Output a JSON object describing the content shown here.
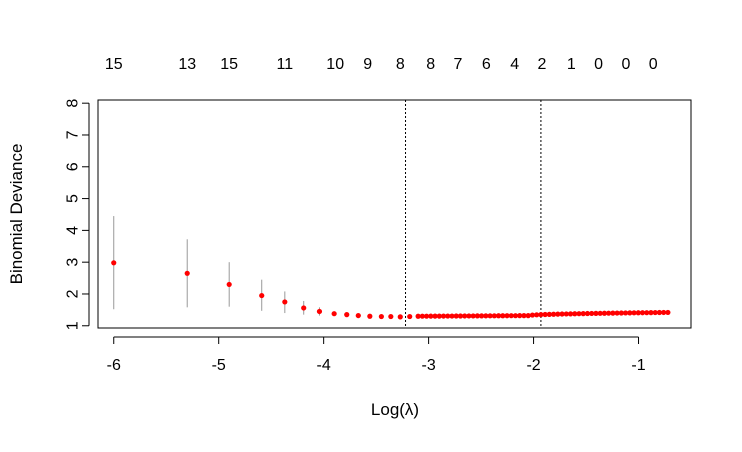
{
  "chart_data": {
    "type": "scatter",
    "xlabel": "Log(λ)",
    "ylabel": "Binomial Deviance",
    "xlim": [
      -6.15,
      -0.5
    ],
    "ylim": [
      0.93,
      8.1
    ],
    "x_ticks": [
      -6,
      -5,
      -4,
      -3,
      -2,
      -1
    ],
    "x_tick_labels": [
      "-6",
      "-5",
      "-4",
      "-3",
      "-2",
      "-1"
    ],
    "y_ticks": [
      1,
      2,
      3,
      4,
      5,
      6,
      7,
      8
    ],
    "y_tick_labels": [
      "1",
      "2",
      "3",
      "4",
      "5",
      "6",
      "7",
      "8"
    ],
    "grid": false,
    "point_color": "#ff0000",
    "errorbar_color": "#999999",
    "vlines": [
      -3.22,
      -1.93
    ],
    "top_labels": [
      {
        "x": -6.0,
        "label": "15"
      },
      {
        "x": -5.3,
        "label": "13"
      },
      {
        "x": -4.9,
        "label": "15"
      },
      {
        "x": -4.37,
        "label": "11"
      },
      {
        "x": -3.89,
        "label": "10"
      },
      {
        "x": -3.58,
        "label": "9"
      },
      {
        "x": -3.27,
        "label": "8"
      },
      {
        "x": -2.98,
        "label": "8"
      },
      {
        "x": -2.72,
        "label": "7"
      },
      {
        "x": -2.45,
        "label": "6"
      },
      {
        "x": -2.18,
        "label": "4"
      },
      {
        "x": -1.92,
        "label": "2"
      },
      {
        "x": -1.64,
        "label": "1"
      },
      {
        "x": -1.38,
        "label": "0"
      },
      {
        "x": -1.12,
        "label": "0"
      },
      {
        "x": -0.86,
        "label": "0"
      }
    ],
    "points": [
      {
        "x": -6.0,
        "y": 2.98,
        "lo": 1.52,
        "hi": 4.45
      },
      {
        "x": -5.3,
        "y": 2.65,
        "lo": 1.58,
        "hi": 3.72
      },
      {
        "x": -4.9,
        "y": 2.3,
        "lo": 1.6,
        "hi": 3.0
      },
      {
        "x": -4.59,
        "y": 1.95,
        "lo": 1.47,
        "hi": 2.45
      },
      {
        "x": -4.37,
        "y": 1.75,
        "lo": 1.4,
        "hi": 2.08
      },
      {
        "x": -4.19,
        "y": 1.56,
        "lo": 1.35,
        "hi": 1.78
      },
      {
        "x": -4.04,
        "y": 1.45,
        "lo": 1.32,
        "hi": 1.58
      },
      {
        "x": -3.9,
        "y": 1.38
      },
      {
        "x": -3.78,
        "y": 1.35
      },
      {
        "x": -3.67,
        "y": 1.32
      },
      {
        "x": -3.56,
        "y": 1.3
      },
      {
        "x": -3.45,
        "y": 1.29
      },
      {
        "x": -3.36,
        "y": 1.29
      },
      {
        "x": -3.27,
        "y": 1.28
      },
      {
        "x": -3.18,
        "y": 1.29
      }
    ],
    "dense_segment": {
      "x_start": -3.1,
      "x_end": -0.72,
      "count": 60,
      "y_start": 1.3,
      "y_end": 1.42,
      "y_dip_at": -2.05,
      "y_dip": 1.32
    }
  }
}
